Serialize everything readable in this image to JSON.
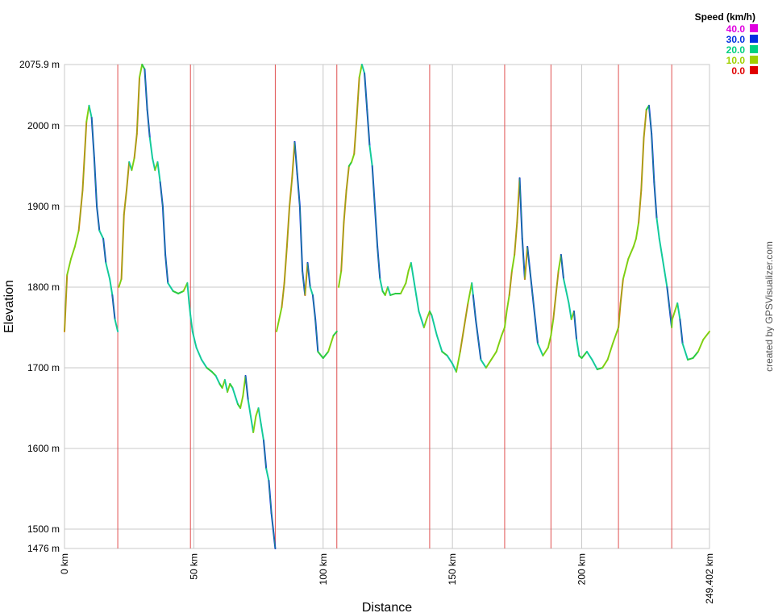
{
  "chart_data": {
    "type": "line",
    "title": "",
    "xlabel": "Distance",
    "ylabel": "Elevation",
    "xlim": [
      0,
      249.402
    ],
    "ylim": [
      1476,
      2075.9
    ],
    "grid": true,
    "x_ticks": [
      {
        "value": 0,
        "label": "0 km"
      },
      {
        "value": 50,
        "label": "50 km"
      },
      {
        "value": 100,
        "label": "100 km"
      },
      {
        "value": 150,
        "label": "150 km"
      },
      {
        "value": 200,
        "label": "200 km"
      },
      {
        "value": 249.402,
        "label": "249.402 km"
      }
    ],
    "y_ticks": [
      {
        "value": 1476,
        "label": "1476 m"
      },
      {
        "value": 1500,
        "label": "1500 m"
      },
      {
        "value": 1600,
        "label": "1600 m"
      },
      {
        "value": 1700,
        "label": "1700 m"
      },
      {
        "value": 1800,
        "label": "1800 m"
      },
      {
        "value": 1900,
        "label": "1900 m"
      },
      {
        "value": 2000,
        "label": "2000 m"
      },
      {
        "value": 2075.9,
        "label": "2075.9 m"
      }
    ],
    "segment_markers_km": [
      20.6,
      48.7,
      81.5,
      105.3,
      141.2,
      170.2,
      188.1,
      214.2,
      234.8
    ],
    "legend": {
      "title": "Speed (km/h)",
      "placement": "top-right",
      "entries": [
        {
          "label": "40.0",
          "color": "#e000e0"
        },
        {
          "label": "30.0",
          "color": "#0030e0"
        },
        {
          "label": "20.0",
          "color": "#00d080"
        },
        {
          "label": "10.0",
          "color": "#a0d000"
        },
        {
          "label": "0.0",
          "color": "#e00000"
        }
      ]
    },
    "series": [
      {
        "x": [
          0,
          1,
          2.5,
          4,
          5.5,
          7,
          8.5,
          9.5,
          10.5,
          11.5,
          12.5,
          13.5,
          15,
          16,
          17.5,
          18.5,
          19.5,
          20.6,
          21,
          22,
          23,
          24,
          25,
          26,
          27,
          28,
          29,
          30,
          31,
          32,
          33,
          34,
          35,
          36,
          37,
          38,
          39,
          40,
          42,
          44,
          46,
          47.5,
          48.2,
          48.7,
          49.5,
          51,
          53,
          55,
          57,
          58.5,
          60,
          61,
          62,
          63,
          64,
          65,
          66,
          67,
          68,
          69,
          70,
          71,
          72,
          73,
          74,
          75,
          76,
          77,
          78,
          79,
          80,
          81.5,
          82,
          83,
          84,
          85,
          86,
          87,
          88,
          89,
          90,
          91,
          92,
          93,
          94,
          95,
          96,
          97,
          98,
          100,
          102,
          104,
          105.3,
          106,
          107,
          108,
          109,
          110,
          111,
          112,
          113,
          114,
          115,
          116,
          117,
          118,
          119,
          120,
          121,
          122,
          123,
          124,
          125,
          126,
          128,
          130,
          132,
          133,
          134,
          135,
          136,
          137,
          138,
          139,
          140,
          141.2,
          142,
          144,
          146,
          148,
          150,
          151.5,
          153,
          154.5,
          156,
          157.5,
          158,
          159,
          161,
          163,
          165,
          167,
          169,
          170.2,
          171,
          172,
          173,
          174,
          175,
          176,
          177,
          178,
          179,
          180,
          181,
          182,
          183,
          185,
          187,
          188.1,
          189,
          190,
          191,
          192,
          193,
          194,
          195,
          196,
          197,
          198,
          199,
          200,
          202,
          204,
          206,
          208,
          210,
          212,
          214.2,
          215,
          216,
          218,
          220,
          221,
          222,
          223,
          224,
          225,
          226,
          227,
          228,
          229,
          230,
          231,
          232,
          233,
          234.8,
          235,
          236,
          237,
          238,
          239,
          241,
          243,
          245,
          247,
          249.402
        ],
        "y": [
          1745,
          1815,
          1835,
          1850,
          1870,
          1920,
          2005,
          2025,
          2010,
          1960,
          1900,
          1870,
          1860,
          1830,
          1810,
          1790,
          1760,
          1745,
          1800,
          1810,
          1890,
          1920,
          1955,
          1945,
          1960,
          1990,
          2060,
          2075.9,
          2070,
          2020,
          1985,
          1960,
          1945,
          1955,
          1930,
          1900,
          1840,
          1805,
          1795,
          1792,
          1795,
          1805,
          1780,
          1765,
          1745,
          1725,
          1710,
          1700,
          1695,
          1690,
          1680,
          1675,
          1685,
          1670,
          1680,
          1675,
          1665,
          1655,
          1650,
          1665,
          1690,
          1660,
          1640,
          1620,
          1640,
          1650,
          1630,
          1610,
          1575,
          1560,
          1520,
          1476,
          1745,
          1760,
          1775,
          1805,
          1850,
          1900,
          1935,
          1980,
          1940,
          1900,
          1820,
          1790,
          1830,
          1800,
          1790,
          1760,
          1720,
          1712,
          1720,
          1740,
          1745,
          1800,
          1820,
          1880,
          1920,
          1950,
          1955,
          1965,
          2010,
          2060,
          2075.9,
          2065,
          2020,
          1975,
          1950,
          1900,
          1850,
          1810,
          1795,
          1790,
          1800,
          1790,
          1792,
          1792,
          1805,
          1820,
          1830,
          1810,
          1790,
          1770,
          1760,
          1750,
          1760,
          1770,
          1765,
          1740,
          1720,
          1715,
          1705,
          1695,
          1720,
          1750,
          1780,
          1805,
          1790,
          1760,
          1710,
          1700,
          1710,
          1720,
          1740,
          1750,
          1770,
          1790,
          1820,
          1840,
          1880,
          1935,
          1860,
          1810,
          1850,
          1820,
          1790,
          1760,
          1730,
          1715,
          1725,
          1740,
          1760,
          1790,
          1820,
          1840,
          1810,
          1795,
          1780,
          1760,
          1770,
          1735,
          1715,
          1712,
          1720,
          1710,
          1698,
          1700,
          1710,
          1730,
          1750,
          1780,
          1810,
          1835,
          1850,
          1860,
          1880,
          1920,
          1985,
          2020,
          2025,
          1990,
          1930,
          1885,
          1860,
          1840,
          1820,
          1800,
          1750,
          1760,
          1770,
          1780,
          1760,
          1730,
          1710,
          1712,
          1720,
          1735,
          1745
        ]
      }
    ],
    "credit": "created by GPSVisualizer.com"
  }
}
